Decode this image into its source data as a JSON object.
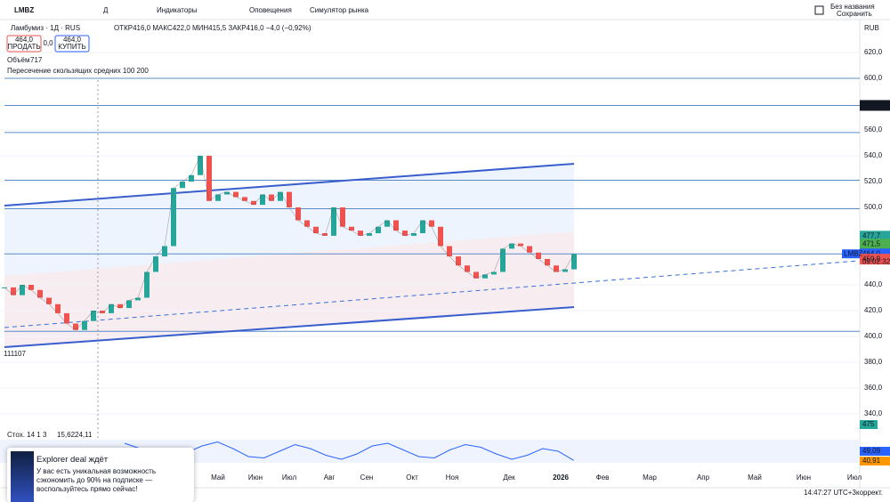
{
  "toolbar": {
    "symbol": "LMBZ",
    "items": [
      "Д",
      "Индикаторы",
      "Оповещения",
      "Симулятор рынка"
    ],
    "layout_name": "Без названия",
    "save": "Сохранить"
  },
  "legend": {
    "title": "Ламбумиз · 1Д · RUS",
    "ohlc": "ОТКР416,0 МАКС422,0 МИН415,5 ЗАКР416,0 −4,0 (−0,92%)",
    "sell_price": "464,0",
    "sell": "ПРОДАТЬ",
    "spread": "0,0",
    "buy_price": "464,0",
    "buy": "КУПИТЬ",
    "volume_label": "Объём",
    "volume_value": "717",
    "indicator": "Пересечение скользящих средних 100 200",
    "volume_max": "111107",
    "stoch": "Стох. 14 1 3",
    "stoch_k": "15,62",
    "stoch_d": "24,11"
  },
  "chart": {
    "currency": "RUB",
    "yticks": [
      {
        "value": 620,
        "label": "620,0"
      },
      {
        "value": 600,
        "label": "600,0"
      },
      {
        "value": 560,
        "label": "560,0"
      },
      {
        "value": 540,
        "label": "540,0"
      },
      {
        "value": 520,
        "label": "520,0"
      },
      {
        "value": 500,
        "label": "500,0"
      },
      {
        "value": 440,
        "label": "440,0"
      },
      {
        "value": 420,
        "label": "420,0"
      },
      {
        "value": 400,
        "label": "400,0"
      },
      {
        "value": 380,
        "label": "380,0"
      },
      {
        "value": 360,
        "label": "360,0"
      },
      {
        "value": 340,
        "label": "340,0"
      }
    ],
    "price_tags": [
      {
        "value": 579,
        "label": "579,0",
        "color": "#131722"
      },
      {
        "value": 477.7,
        "label": "477,7",
        "color": "#26a69a"
      },
      {
        "value": 471.5,
        "label": "471,5",
        "color": "#4caf50"
      },
      {
        "value": 464,
        "label": "464,0",
        "color": "#2962ff"
      },
      {
        "value": 459.9,
        "label": "459,9",
        "color": "#ef5350"
      }
    ],
    "symbol_tag": "LMBZ",
    "countdown": "09:02:32",
    "vol_tag": "475",
    "stoch_tags": [
      "49,09",
      "40,91"
    ],
    "levels": [
      600,
      579,
      558,
      521,
      499,
      464,
      404
    ],
    "closes": [
      438,
      432,
      440,
      436,
      430,
      425,
      418,
      410,
      405,
      412,
      420,
      418,
      425,
      422,
      428,
      430,
      450,
      462,
      470,
      515,
      520,
      525,
      540,
      505,
      510,
      512,
      508,
      505,
      502,
      510,
      505,
      512,
      500,
      490,
      485,
      480,
      478,
      500,
      485,
      482,
      478,
      480,
      485,
      490,
      482,
      478,
      480,
      490,
      485,
      470,
      462,
      455,
      450,
      445,
      448,
      450,
      468,
      472,
      470,
      465,
      460,
      455,
      450,
      452,
      464
    ],
    "stoch": [
      80,
      60,
      30,
      20,
      45,
      70,
      85,
      60,
      30,
      25,
      50,
      75,
      60,
      35,
      20,
      40,
      70,
      80,
      55,
      30,
      25,
      55,
      75,
      65,
      40,
      20,
      35,
      60,
      50,
      16
    ],
    "months": [
      "Май",
      "Июн",
      "Июл",
      "Авг",
      "Сен",
      "Окт",
      "Ноя",
      "Дек",
      "2026",
      "Фев",
      "Мар",
      "Апр",
      "Май",
      "Июн",
      "Июл"
    ]
  },
  "ad": {
    "title": "Explorer deal ждёт",
    "text": "У вас есть уникальная возможность сэкономить до 90% на подписке — воспользуйтесь прямо сейчас!"
  },
  "status": {
    "time": "14:47:27 UTC+3",
    "adjust": "коррект."
  }
}
